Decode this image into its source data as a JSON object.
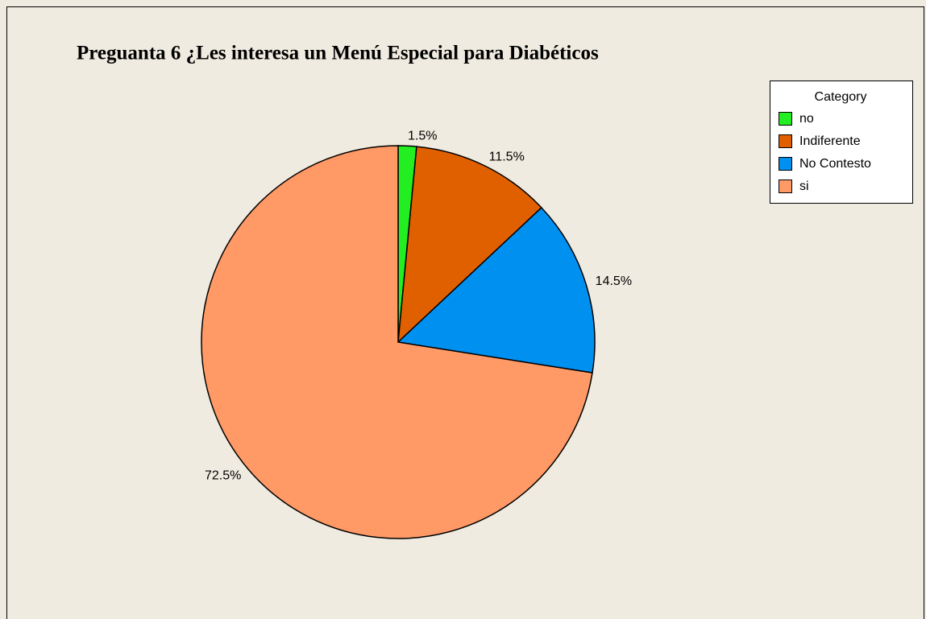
{
  "chart_data": {
    "type": "pie",
    "title": "Preguanta 6 ¿Les interesa un Menú Especial para Diabéticos",
    "legend_title": "Category",
    "legend": "upper right",
    "categories": [
      "no",
      "Indiferente",
      "No Contesto",
      "si"
    ],
    "values": [
      1.5,
      11.5,
      14.5,
      72.5
    ],
    "value_labels": [
      "1.5%",
      "11.5%",
      "14.5%",
      "72.5%"
    ],
    "colors": [
      "#22ee22",
      "#e06000",
      "#0090f0",
      "#ff9966"
    ]
  }
}
